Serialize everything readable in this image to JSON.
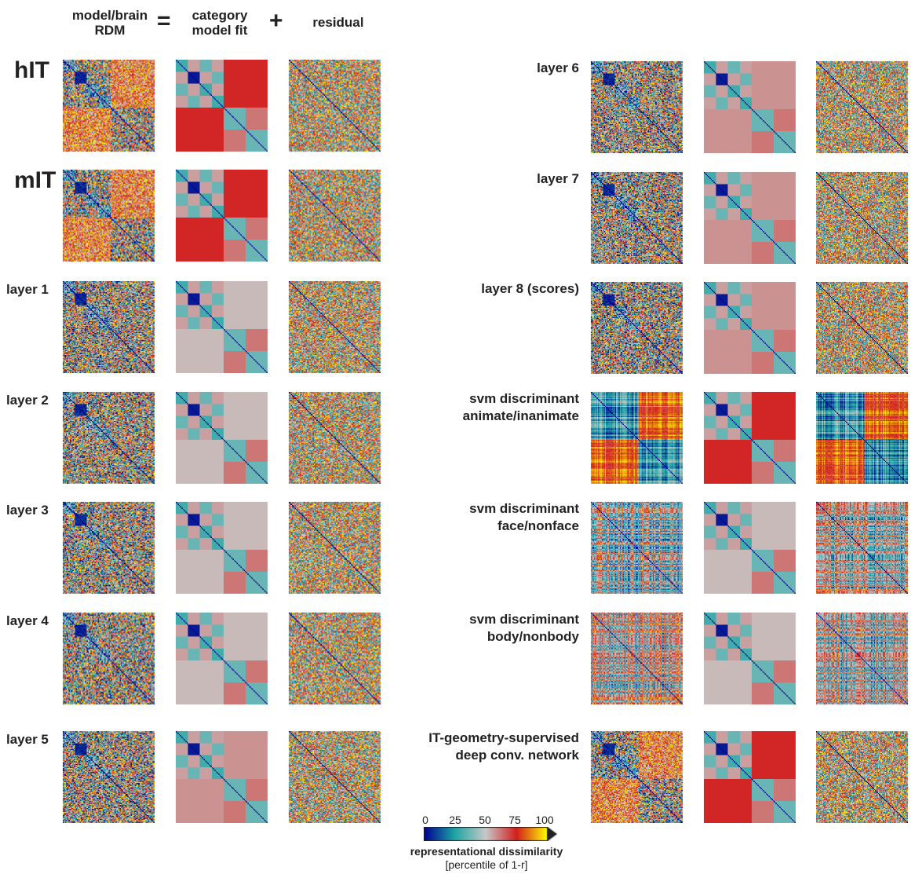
{
  "header": {
    "col1": "model/brain\nRDM",
    "equals": "=",
    "col2": "category\nmodel fit",
    "plus": "+",
    "col3": "residual"
  },
  "rows": [
    {
      "label": "hIT",
      "fit": "animacy-strong"
    },
    {
      "label": "mIT",
      "fit": "animacy-strong"
    },
    {
      "label": "layer 1",
      "fit": "weak"
    },
    {
      "label": "layer 2",
      "fit": "weak"
    },
    {
      "label": "layer 3",
      "fit": "weak"
    },
    {
      "label": "layer 4",
      "fit": "weak"
    },
    {
      "label": "layer 5",
      "fit": "medium"
    },
    {
      "label": "layer 6",
      "fit": "medium"
    },
    {
      "label": "layer 7",
      "fit": "medium"
    },
    {
      "label": "layer 8 (scores)",
      "fit": "medium"
    },
    {
      "label": "svm discriminant\nanimate/inanimate",
      "fit": "animacy-strong"
    },
    {
      "label": "svm discriminant\nface/nonface",
      "fit": "weak"
    },
    {
      "label": "svm discriminant\nbody/nonbody",
      "fit": "weak"
    },
    {
      "label": "IT-geometry-supervised\ndeep conv. network",
      "fit": "animacy-strong"
    }
  ],
  "colorbar": {
    "ticks": [
      "0",
      "25",
      "50",
      "75",
      "100"
    ],
    "title": "representational dissimilarity",
    "subtitle": "[percentile of 1-r]",
    "colors": [
      "#00008f",
      "#1ea5a5",
      "#c8c8c8",
      "#d21e1e",
      "#ffff00"
    ]
  }
}
